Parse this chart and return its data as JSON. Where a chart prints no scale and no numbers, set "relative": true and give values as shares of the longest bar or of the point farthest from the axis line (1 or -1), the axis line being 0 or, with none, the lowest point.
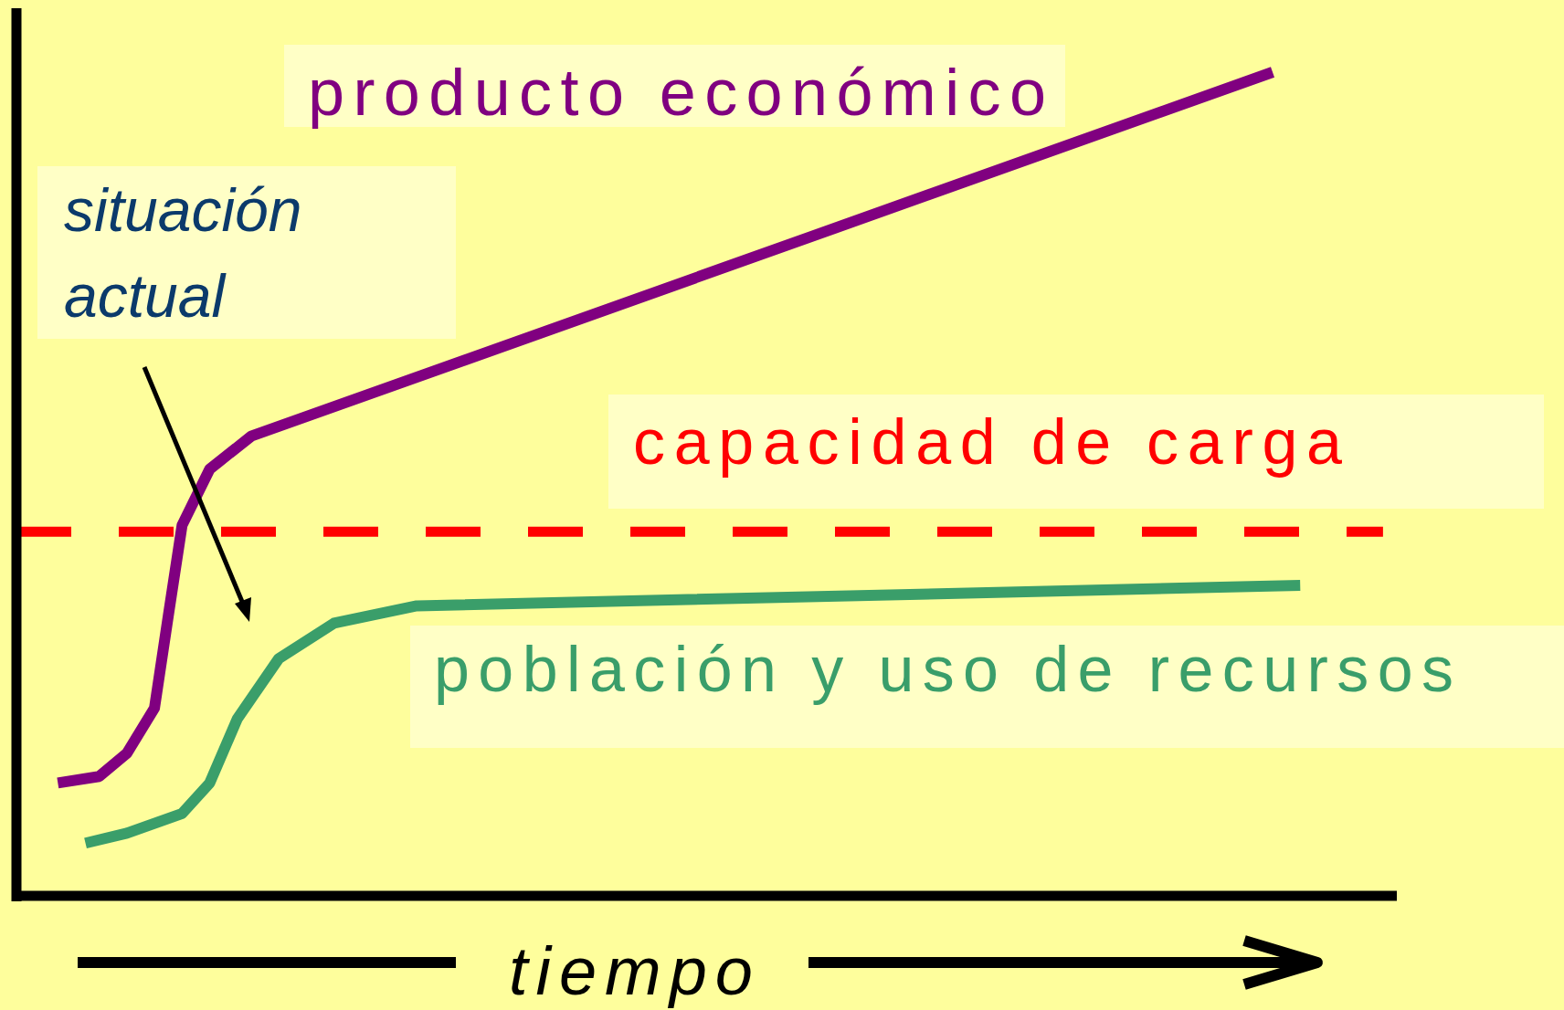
{
  "chart_data": {
    "type": "line",
    "relative": true,
    "xlabel": "tiempo",
    "legend": false,
    "categories": [
      null,
      null,
      null,
      null,
      null,
      null,
      null,
      null,
      null,
      null,
      null,
      null,
      null,
      null,
      null,
      null,
      null,
      null,
      null,
      null,
      null,
      null,
      null,
      null,
      null,
      null,
      null,
      null,
      null,
      null,
      null,
      null,
      null,
      null,
      null,
      null,
      null,
      null,
      null,
      null,
      null,
      null,
      null,
      null,
      null,
      null,
      null,
      null,
      null,
      null,
      null,
      null,
      null,
      null,
      null,
      null,
      null,
      null,
      null,
      null,
      null,
      null,
      null,
      null,
      null,
      null,
      null,
      null,
      null,
      null,
      null,
      null,
      null,
      null,
      null,
      null,
      null,
      null,
      null,
      null,
      null,
      null,
      null,
      null,
      null,
      null,
      null,
      null,
      null,
      null,
      null,
      null,
      null,
      null,
      null,
      null,
      null,
      null,
      null,
      null,
      null
    ],
    "series": [
      {
        "name": "producto económico",
        "color": "#800080",
        "values": [
          null,
          null,
          null,
          0.137,
          null,
          null,
          0.145,
          null,
          0.173,
          null,
          0.228,
          0.34,
          0.45,
          null,
          0.518,
          null,
          null,
          0.558,
          null,
          null,
          null,
          null,
          null,
          null,
          null,
          null,
          null,
          null,
          null,
          null,
          null,
          null,
          null,
          null,
          null,
          null,
          null,
          null,
          null,
          null,
          null,
          null,
          null,
          null,
          null,
          null,
          null,
          null,
          null,
          null,
          null,
          null,
          null,
          null,
          null,
          null,
          null,
          null,
          null,
          null,
          null,
          null,
          null,
          null,
          null,
          null,
          null,
          null,
          null,
          null,
          null,
          null,
          null,
          null,
          null,
          null,
          null,
          null,
          null,
          null,
          null,
          null,
          null,
          null,
          null,
          null,
          null,
          null,
          null,
          null,
          null,
          1,
          null,
          null,
          null,
          null,
          null,
          null,
          null,
          null,
          null
        ]
      },
      {
        "name": "población y uso de recursos",
        "color": "#3a9e6a",
        "values": [
          null,
          null,
          null,
          null,
          null,
          0.064,
          null,
          null,
          0.076,
          null,
          null,
          null,
          0.1,
          null,
          0.137,
          null,
          0.215,
          null,
          null,
          0.288,
          null,
          null,
          null,
          0.331,
          null,
          null,
          null,
          null,
          null,
          0.352,
          null,
          null,
          null,
          null,
          null,
          null,
          null,
          null,
          null,
          null,
          null,
          null,
          null,
          null,
          null,
          null,
          null,
          null,
          null,
          null,
          null,
          null,
          null,
          null,
          null,
          null,
          null,
          null,
          null,
          null,
          null,
          null,
          null,
          null,
          null,
          null,
          null,
          null,
          null,
          null,
          null,
          null,
          null,
          null,
          null,
          null,
          null,
          null,
          null,
          null,
          null,
          null,
          null,
          null,
          null,
          null,
          null,
          null,
          null,
          null,
          null,
          null,
          null,
          0.377,
          null,
          null,
          null,
          null,
          null,
          null,
          null
        ]
      }
    ],
    "ref_lines": [
      {
        "axis": "y",
        "value": 0.442,
        "label": "capacidad de carga",
        "color": "#ff0000",
        "line_style": "dashed"
      }
    ],
    "annotations": [
      "situación actual"
    ]
  }
}
